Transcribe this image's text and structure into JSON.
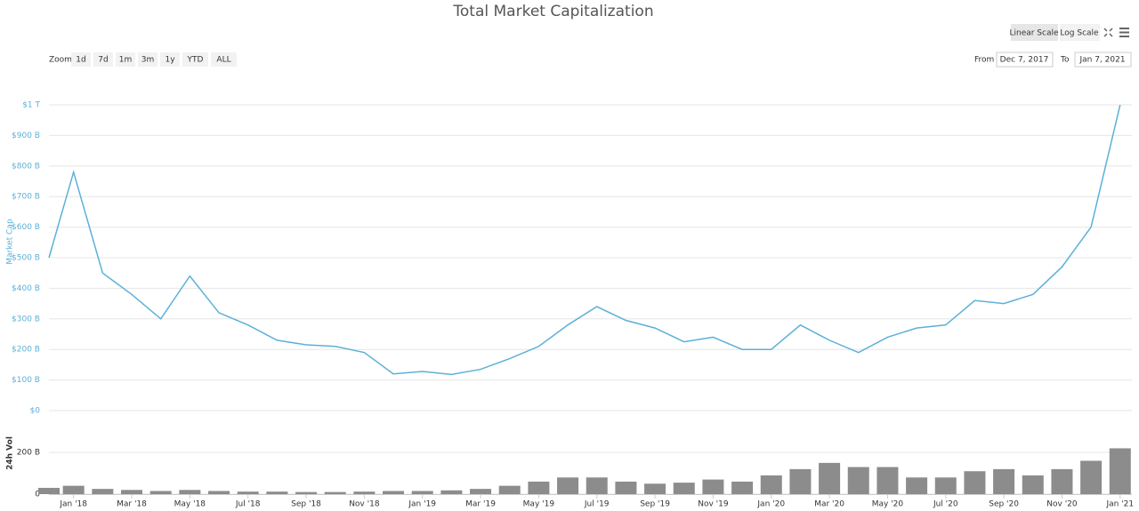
{
  "controls": {
    "zoom_label": "Zoom",
    "zoom_buttons": [
      "1d",
      "7d",
      "1m",
      "3m",
      "1y",
      "YTD",
      "ALL"
    ],
    "scale_buttons": [
      "Linear Scale",
      "Log Scale"
    ],
    "from_label": "From",
    "from_date": "Dec 7, 2017",
    "to_label": "To",
    "to_date": "Jan 7, 2021"
  },
  "chart_data": [
    {
      "type": "line",
      "title": "Total Market Capitalization",
      "y_label": "Market Cap",
      "x": [
        "2017-12",
        "2018-01",
        "2018-02",
        "2018-03",
        "2018-04",
        "2018-05",
        "2018-06",
        "2018-07",
        "2018-08",
        "2018-09",
        "2018-10",
        "2018-11",
        "2018-12",
        "2019-01",
        "2019-02",
        "2019-03",
        "2019-04",
        "2019-05",
        "2019-06",
        "2019-07",
        "2019-08",
        "2019-09",
        "2019-10",
        "2019-11",
        "2019-12",
        "2020-01",
        "2020-02",
        "2020-03",
        "2020-04",
        "2020-05",
        "2020-06",
        "2020-07",
        "2020-08",
        "2020-09",
        "2020-10",
        "2020-11",
        "2020-12",
        "2021-01"
      ],
      "series": [
        {
          "name": "Market Cap",
          "color": "#5cb0d8",
          "values": [
            500,
            780,
            450,
            380,
            300,
            440,
            320,
            280,
            230,
            215,
            210,
            190,
            120,
            128,
            118,
            135,
            170,
            210,
            280,
            340,
            295,
            270,
            225,
            240,
            200,
            200,
            280,
            230,
            190,
            240,
            270,
            280,
            360,
            350,
            380,
            470,
            600,
            1000
          ]
        }
      ],
      "ylim": [
        0,
        1000
      ],
      "yticks": [
        {
          "value": 0,
          "label": "$0"
        },
        {
          "value": 100,
          "label": "$100 B"
        },
        {
          "value": 200,
          "label": "$200 B"
        },
        {
          "value": 300,
          "label": "$300 B"
        },
        {
          "value": 400,
          "label": "$400 B"
        },
        {
          "value": 500,
          "label": "$500 B"
        },
        {
          "value": 600,
          "label": "$600 B"
        },
        {
          "value": 700,
          "label": "$700 B"
        },
        {
          "value": 800,
          "label": "$800 B"
        },
        {
          "value": 900,
          "label": "$900 B"
        },
        {
          "value": 1000,
          "label": "$1 T"
        }
      ],
      "grid": true
    },
    {
      "type": "bar",
      "y_label": "24h Vol",
      "x": [
        "2017-12",
        "2018-01",
        "2018-02",
        "2018-03",
        "2018-04",
        "2018-05",
        "2018-06",
        "2018-07",
        "2018-08",
        "2018-09",
        "2018-10",
        "2018-11",
        "2018-12",
        "2019-01",
        "2019-02",
        "2019-03",
        "2019-04",
        "2019-05",
        "2019-06",
        "2019-07",
        "2019-08",
        "2019-09",
        "2019-10",
        "2019-11",
        "2019-12",
        "2020-01",
        "2020-02",
        "2020-03",
        "2020-04",
        "2020-05",
        "2020-06",
        "2020-07",
        "2020-08",
        "2020-09",
        "2020-10",
        "2020-11",
        "2020-12",
        "2021-01"
      ],
      "series": [
        {
          "name": "24h Vol",
          "color": "#8c8c8c",
          "values": [
            30,
            40,
            25,
            20,
            15,
            20,
            15,
            12,
            12,
            10,
            10,
            12,
            15,
            15,
            18,
            25,
            40,
            60,
            80,
            80,
            60,
            50,
            55,
            70,
            60,
            90,
            120,
            150,
            130,
            130,
            80,
            80,
            110,
            120,
            90,
            120,
            160,
            220
          ]
        }
      ],
      "ylim": [
        0,
        350
      ],
      "yticks": [
        0,
        {
          "value": 200,
          "label": "200 B"
        }
      ],
      "xticks": [
        {
          "value": "2018-01",
          "label": "Jan '18"
        },
        {
          "value": "2018-03",
          "label": "Mar '18"
        },
        {
          "value": "2018-05",
          "label": "May '18"
        },
        {
          "value": "2018-07",
          "label": "Jul '18"
        },
        {
          "value": "2018-09",
          "label": "Sep '18"
        },
        {
          "value": "2018-11",
          "label": "Nov '18"
        },
        {
          "value": "2019-01",
          "label": "Jan '19"
        },
        {
          "value": "2019-03",
          "label": "Mar '19"
        },
        {
          "value": "2019-05",
          "label": "May '19"
        },
        {
          "value": "2019-07",
          "label": "Jul '19"
        },
        {
          "value": "2019-09",
          "label": "Sep '19"
        },
        {
          "value": "2019-11",
          "label": "Nov '19"
        },
        {
          "value": "2020-01",
          "label": "Jan '20"
        },
        {
          "value": "2020-03",
          "label": "Mar '20"
        },
        {
          "value": "2020-05",
          "label": "May '20"
        },
        {
          "value": "2020-07",
          "label": "Jul '20"
        },
        {
          "value": "2020-09",
          "label": "Sep '20"
        },
        {
          "value": "2020-11",
          "label": "Nov '20"
        },
        {
          "value": "2021-01",
          "label": "Jan '21"
        }
      ],
      "grid": true
    }
  ]
}
